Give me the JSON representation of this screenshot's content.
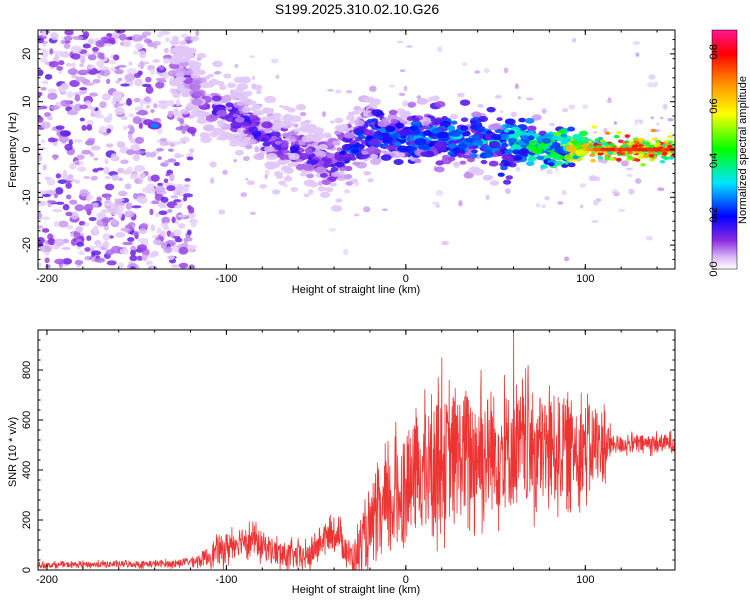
{
  "title": "S199.2025.310.02.10.G26",
  "chart_data": [
    {
      "type": "heatmap",
      "name": "spectrogram",
      "xlabel": "Height of straight line (km)",
      "ylabel": "Frequency (Hz)",
      "xlim": [
        -205,
        150
      ],
      "ylim": [
        -25,
        25
      ],
      "xticks": [
        -200,
        -100,
        0,
        100
      ],
      "yticks": [
        -20,
        -10,
        0,
        10,
        20
      ],
      "xtick_labels": [
        "-200",
        "-100",
        "0",
        "100"
      ],
      "ytick_labels": [
        "-20",
        "-10",
        "0",
        "10",
        "20"
      ],
      "colorbar": {
        "label": "Normalized spectral amplitude",
        "range": [
          0,
          0.88
        ],
        "ticks": [
          0.0,
          0.2,
          0.4,
          0.6,
          0.8
        ],
        "tick_labels": [
          "0.0",
          "0.2",
          "0.4",
          "0.6",
          "0.8"
        ]
      },
      "ridge": [
        {
          "x": -125,
          "f": 17
        },
        {
          "x": -110,
          "f": 9
        },
        {
          "x": -100,
          "f": 8
        },
        {
          "x": -90,
          "f": 6
        },
        {
          "x": -80,
          "f": 3
        },
        {
          "x": -65,
          "f": 1
        },
        {
          "x": -50,
          "f": -2
        },
        {
          "x": -40,
          "f": -3
        },
        {
          "x": -30,
          "f": 0
        },
        {
          "x": -20,
          "f": 3
        },
        {
          "x": 0,
          "f": 3
        },
        {
          "x": 30,
          "f": 2
        },
        {
          "x": 60,
          "f": 1
        },
        {
          "x": 90,
          "f": 0.5
        },
        {
          "x": 110,
          "f": 0
        },
        {
          "x": 150,
          "f": 0
        }
      ],
      "ridge_amplitude": [
        {
          "x": -205,
          "a": 0.08
        },
        {
          "x": -130,
          "a": 0.1
        },
        {
          "x": -100,
          "a": 0.2
        },
        {
          "x": -50,
          "a": 0.18
        },
        {
          "x": -20,
          "a": 0.3
        },
        {
          "x": 40,
          "a": 0.35
        },
        {
          "x": 80,
          "a": 0.5
        },
        {
          "x": 110,
          "a": 0.88
        },
        {
          "x": 150,
          "a": 0.88
        }
      ],
      "isolated_peak": {
        "x": -140,
        "f": 5,
        "a": 0.3
      }
    },
    {
      "type": "line",
      "name": "snr",
      "xlabel": "Height of straight line (km)",
      "ylabel": "SNR (10 * v/v)",
      "xlim": [
        -205,
        150
      ],
      "ylim": [
        0,
        960
      ],
      "xticks": [
        -200,
        -100,
        0,
        100
      ],
      "yticks": [
        0,
        200,
        400,
        600,
        800
      ],
      "xtick_labels": [
        "-200",
        "-100",
        "0",
        "100"
      ],
      "ytick_labels": [
        "0",
        "200",
        "400",
        "600",
        "800"
      ],
      "color": "#ee3333",
      "envelope_mean": [
        {
          "x": -205,
          "y": 20
        },
        {
          "x": -130,
          "y": 25
        },
        {
          "x": -115,
          "y": 40
        },
        {
          "x": -100,
          "y": 90
        },
        {
          "x": -90,
          "y": 130
        },
        {
          "x": -80,
          "y": 100
        },
        {
          "x": -70,
          "y": 60
        },
        {
          "x": -55,
          "y": 50
        },
        {
          "x": -45,
          "y": 130
        },
        {
          "x": -38,
          "y": 150
        },
        {
          "x": -30,
          "y": 40
        },
        {
          "x": -20,
          "y": 150
        },
        {
          "x": -5,
          "y": 300
        },
        {
          "x": 10,
          "y": 400
        },
        {
          "x": 30,
          "y": 460
        },
        {
          "x": 60,
          "y": 480
        },
        {
          "x": 90,
          "y": 490
        },
        {
          "x": 110,
          "y": 500
        },
        {
          "x": 150,
          "y": 510
        }
      ],
      "envelope_spread": [
        {
          "x": -205,
          "y": 10
        },
        {
          "x": -120,
          "y": 15
        },
        {
          "x": -100,
          "y": 60
        },
        {
          "x": -60,
          "y": 50
        },
        {
          "x": -30,
          "y": 60
        },
        {
          "x": -10,
          "y": 200
        },
        {
          "x": 30,
          "y": 250
        },
        {
          "x": 80,
          "y": 220
        },
        {
          "x": 110,
          "y": 150
        },
        {
          "x": 115,
          "y": 35
        },
        {
          "x": 150,
          "y": 35
        }
      ],
      "peaks": [
        {
          "x": 18,
          "y": 770
        },
        {
          "x": 20,
          "y": 850
        },
        {
          "x": 42,
          "y": 800
        },
        {
          "x": 55,
          "y": 780
        },
        {
          "x": 60,
          "y": 950
        },
        {
          "x": 68,
          "y": 760
        }
      ]
    }
  ]
}
